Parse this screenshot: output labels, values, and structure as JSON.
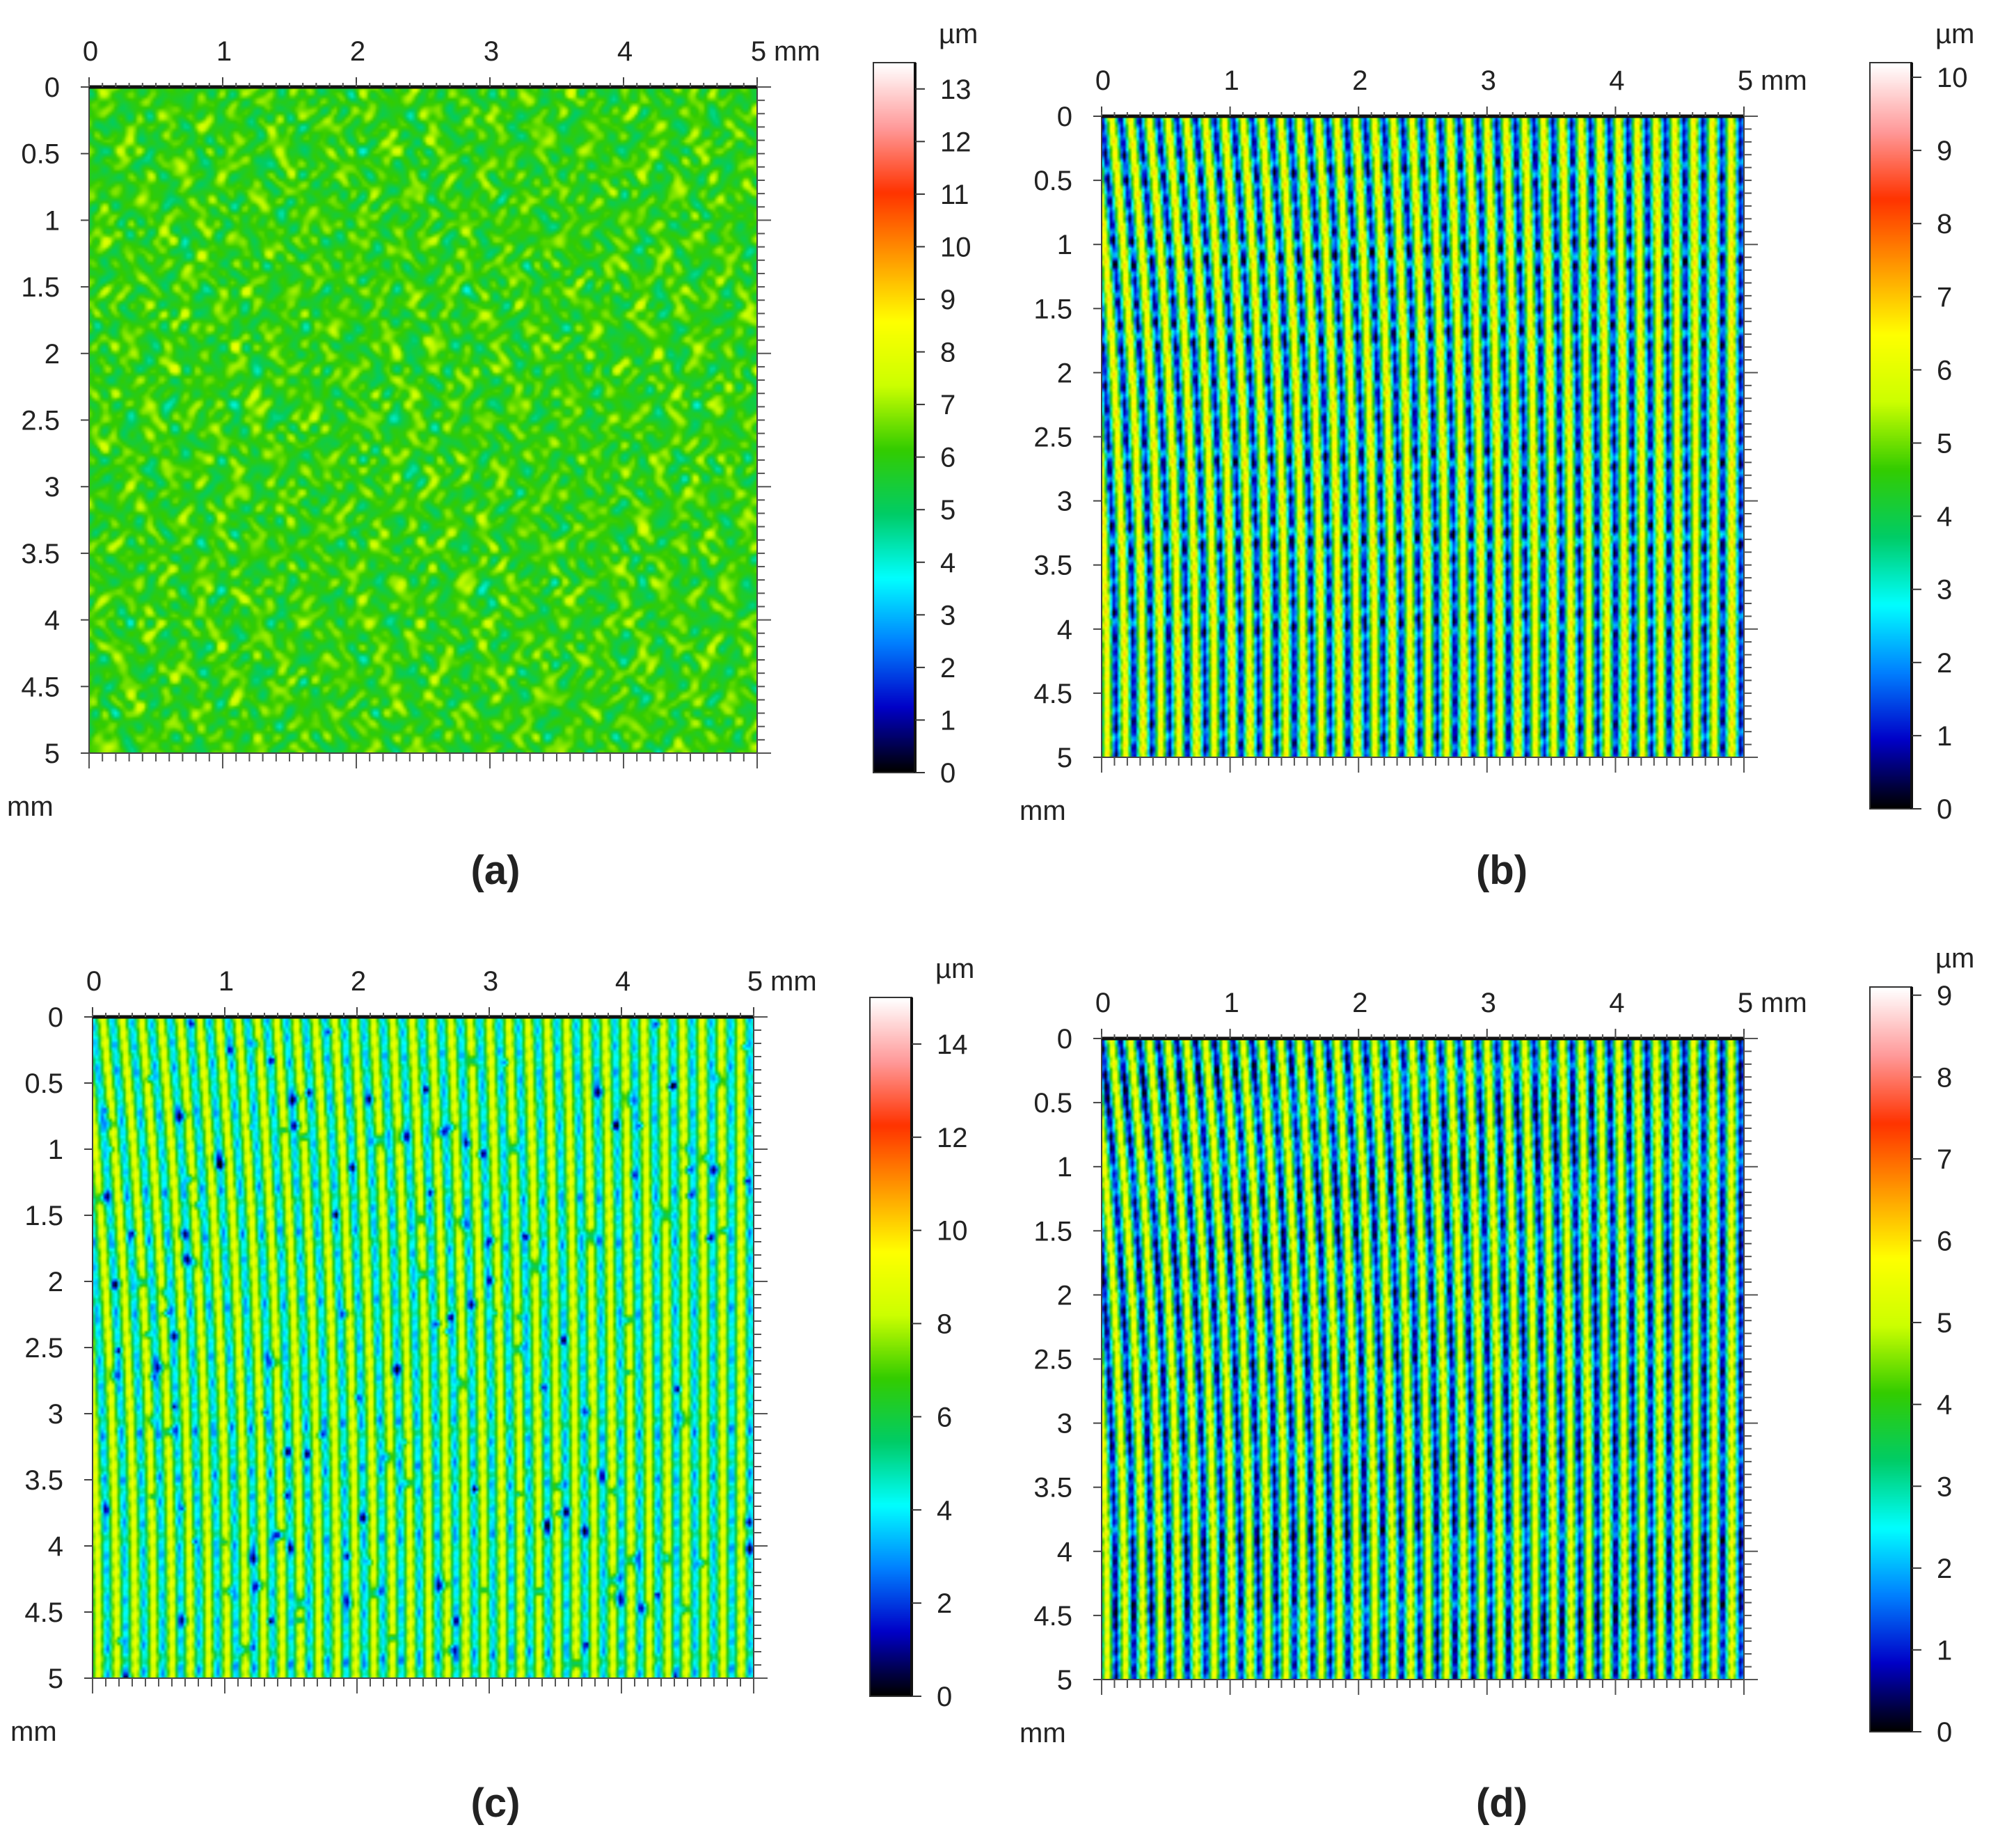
{
  "chart_data": [
    {
      "type": "heatmap",
      "panel_label": "(a)",
      "axis_unit": "mm",
      "x_unit_label": "mm",
      "y_unit_label": "mm",
      "xlim": [
        0,
        5
      ],
      "ylim": [
        0,
        5
      ],
      "x_ticks": [
        "0",
        "1",
        "2",
        "3",
        "4",
        "5"
      ],
      "y_ticks": [
        "0",
        "0.5",
        "1",
        "1.5",
        "2",
        "2.5",
        "3",
        "3.5",
        "4",
        "4.5",
        "5"
      ],
      "colorbar": {
        "unit": "µm",
        "range": [
          0,
          13.5
        ],
        "ticks": [
          "0",
          "1",
          "2",
          "3",
          "4",
          "5",
          "6",
          "7",
          "8",
          "9",
          "10",
          "11",
          "12",
          "13"
        ]
      },
      "pattern": "isotropic-random",
      "base_value": 6.0,
      "amplitude": 1.3
    },
    {
      "type": "heatmap",
      "panel_label": "(b)",
      "axis_unit": "mm",
      "x_unit_label": "mm",
      "y_unit_label": "mm",
      "xlim": [
        0,
        5
      ],
      "ylim": [
        0,
        5
      ],
      "x_ticks": [
        "0",
        "1",
        "2",
        "3",
        "4",
        "5"
      ],
      "y_ticks": [
        "0",
        "0.5",
        "1",
        "1.5",
        "2",
        "2.5",
        "3",
        "3.5",
        "4",
        "4.5",
        "5"
      ],
      "colorbar": {
        "unit": "µm",
        "range": [
          0,
          10.2
        ],
        "ticks": [
          "0",
          "1",
          "2",
          "3",
          "4",
          "5",
          "6",
          "7",
          "8",
          "9",
          "10"
        ]
      },
      "pattern": "vertical-grooves",
      "groove_count": 36,
      "base_value": 4.0,
      "amplitude": 3.0
    },
    {
      "type": "heatmap",
      "panel_label": "(c)",
      "axis_unit": "mm",
      "x_unit_label": "mm",
      "y_unit_label": "mm",
      "xlim": [
        0,
        5
      ],
      "ylim": [
        0,
        5
      ],
      "x_ticks": [
        "0",
        "1",
        "2",
        "3",
        "4",
        "5"
      ],
      "y_ticks": [
        "0",
        "0.5",
        "1",
        "1.5",
        "2",
        "2.5",
        "3",
        "3.5",
        "4",
        "4.5",
        "5"
      ],
      "colorbar": {
        "unit": "µm",
        "range": [
          0,
          15
        ],
        "ticks": [
          "0",
          "2",
          "4",
          "6",
          "8",
          "10",
          "12",
          "14"
        ]
      },
      "pattern": "vertical-grooves-with-pits",
      "groove_count": 36,
      "base_value": 6.5,
      "amplitude": 2.8
    },
    {
      "type": "heatmap",
      "panel_label": "(d)",
      "axis_unit": "mm",
      "x_unit_label": "mm",
      "y_unit_label": "mm",
      "xlim": [
        0,
        5
      ],
      "ylim": [
        0,
        5
      ],
      "x_ticks": [
        "0",
        "1",
        "2",
        "3",
        "4",
        "5"
      ],
      "y_ticks": [
        "0",
        "0.5",
        "1",
        "1.5",
        "2",
        "2.5",
        "3",
        "3.5",
        "4",
        "4.5",
        "5"
      ],
      "colorbar": {
        "unit": "µm",
        "range": [
          0,
          9.1
        ],
        "ticks": [
          "0",
          "1",
          "2",
          "3",
          "4",
          "5",
          "6",
          "7",
          "8",
          "9"
        ]
      },
      "pattern": "vertical-grooves",
      "groove_count": 36,
      "base_value": 3.4,
      "amplitude": 2.6
    }
  ],
  "colormap": [
    "#000000",
    "#0000c8",
    "#0080ff",
    "#00ffff",
    "#00cc66",
    "#33cc00",
    "#ccff00",
    "#ffff00",
    "#ff9900",
    "#ff3300",
    "#ff9999",
    "#ffffff"
  ]
}
